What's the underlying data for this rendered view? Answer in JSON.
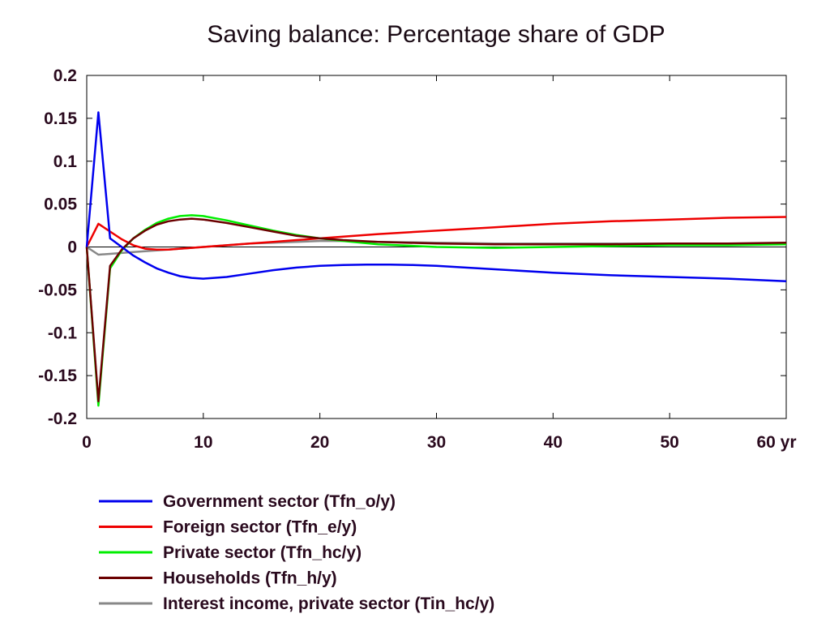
{
  "chart_data": {
    "type": "line",
    "title": "Saving balance: Percentage share of GDP",
    "xlabel": "",
    "ylabel": "",
    "xlim": [
      0,
      60
    ],
    "ylim": [
      -0.2,
      0.2
    ],
    "x_tick_labels": [
      "0",
      "10",
      "20",
      "30",
      "40",
      "50",
      "60 yr"
    ],
    "x_tick_values": [
      0,
      10,
      20,
      30,
      40,
      50,
      60
    ],
    "y_tick_labels": [
      "0.2",
      "0.15",
      "0.1",
      "0.05",
      "0",
      "-0.05",
      "-0.1",
      "-0.15",
      "-0.2"
    ],
    "y_tick_values": [
      0.2,
      0.15,
      0.1,
      0.05,
      0,
      -0.05,
      -0.1,
      -0.15,
      -0.2
    ],
    "grid": false,
    "legend_position": "bottom",
    "series": [
      {
        "name": "Government sector (Tfn_o/y)",
        "color": "#0000ee",
        "x": [
          0,
          1,
          2,
          3,
          4,
          5,
          6,
          7,
          8,
          9,
          10,
          12,
          14,
          16,
          18,
          20,
          22,
          24,
          26,
          28,
          30,
          35,
          40,
          45,
          50,
          55,
          60
        ],
        "y": [
          0,
          0.157,
          0.01,
          0.0,
          -0.01,
          -0.018,
          -0.025,
          -0.03,
          -0.034,
          -0.036,
          -0.037,
          -0.035,
          -0.031,
          -0.027,
          -0.024,
          -0.022,
          -0.021,
          -0.0205,
          -0.0205,
          -0.021,
          -0.022,
          -0.026,
          -0.03,
          -0.033,
          -0.035,
          -0.037,
          -0.04
        ]
      },
      {
        "name": "Foreign sector (Tfn_e/y)",
        "color": "#ee0000",
        "x": [
          0,
          1,
          2,
          3,
          4,
          5,
          6,
          7,
          8,
          9,
          10,
          12,
          14,
          16,
          18,
          20,
          22,
          25,
          30,
          35,
          40,
          45,
          50,
          55,
          60
        ],
        "y": [
          0,
          0.027,
          0.018,
          0.009,
          0.002,
          -0.002,
          -0.003,
          -0.003,
          -0.002,
          -0.001,
          0.0,
          0.002,
          0.004,
          0.006,
          0.008,
          0.01,
          0.012,
          0.015,
          0.019,
          0.023,
          0.027,
          0.03,
          0.032,
          0.034,
          0.035
        ]
      },
      {
        "name": "Private sector (Tfn_hc/y)",
        "color": "#00ee00",
        "x": [
          0,
          1,
          2,
          3,
          4,
          5,
          6,
          7,
          8,
          9,
          10,
          12,
          14,
          16,
          18,
          20,
          22,
          25,
          30,
          35,
          40,
          45,
          50,
          55,
          60
        ],
        "y": [
          0,
          -0.185,
          -0.025,
          -0.004,
          0.01,
          0.02,
          0.028,
          0.033,
          0.036,
          0.037,
          0.036,
          0.031,
          0.025,
          0.019,
          0.014,
          0.01,
          0.007,
          0.003,
          0.0,
          -0.001,
          0.0,
          0.001,
          0.002,
          0.002,
          0.003
        ]
      },
      {
        "name": "Households (Tfn_h/y)",
        "color": "#6b0000",
        "x": [
          0,
          1,
          2,
          3,
          4,
          5,
          6,
          7,
          8,
          9,
          10,
          12,
          14,
          16,
          18,
          20,
          22,
          25,
          30,
          35,
          40,
          45,
          50,
          55,
          60
        ],
        "y": [
          0,
          -0.18,
          -0.022,
          -0.003,
          0.01,
          0.019,
          0.026,
          0.03,
          0.032,
          0.033,
          0.032,
          0.028,
          0.023,
          0.018,
          0.013,
          0.01,
          0.008,
          0.006,
          0.004,
          0.003,
          0.003,
          0.003,
          0.004,
          0.004,
          0.005
        ]
      },
      {
        "name": "Interest income, private sector (Tin_hc/y)",
        "color": "#888888",
        "x": [
          0,
          1,
          2,
          3,
          4,
          5,
          6,
          7,
          8,
          9,
          10,
          12,
          14,
          16,
          18,
          20,
          22,
          25,
          30,
          35,
          40,
          45,
          50,
          55,
          60
        ],
        "y": [
          0,
          -0.009,
          -0.008,
          -0.007,
          -0.006,
          -0.005,
          -0.004,
          -0.003,
          -0.002,
          -0.001,
          0.0,
          0.002,
          0.004,
          0.005,
          0.006,
          0.007,
          0.007,
          0.006,
          0.005,
          0.004,
          0.004,
          0.004,
          0.004,
          0.004,
          0.004
        ]
      }
    ]
  }
}
